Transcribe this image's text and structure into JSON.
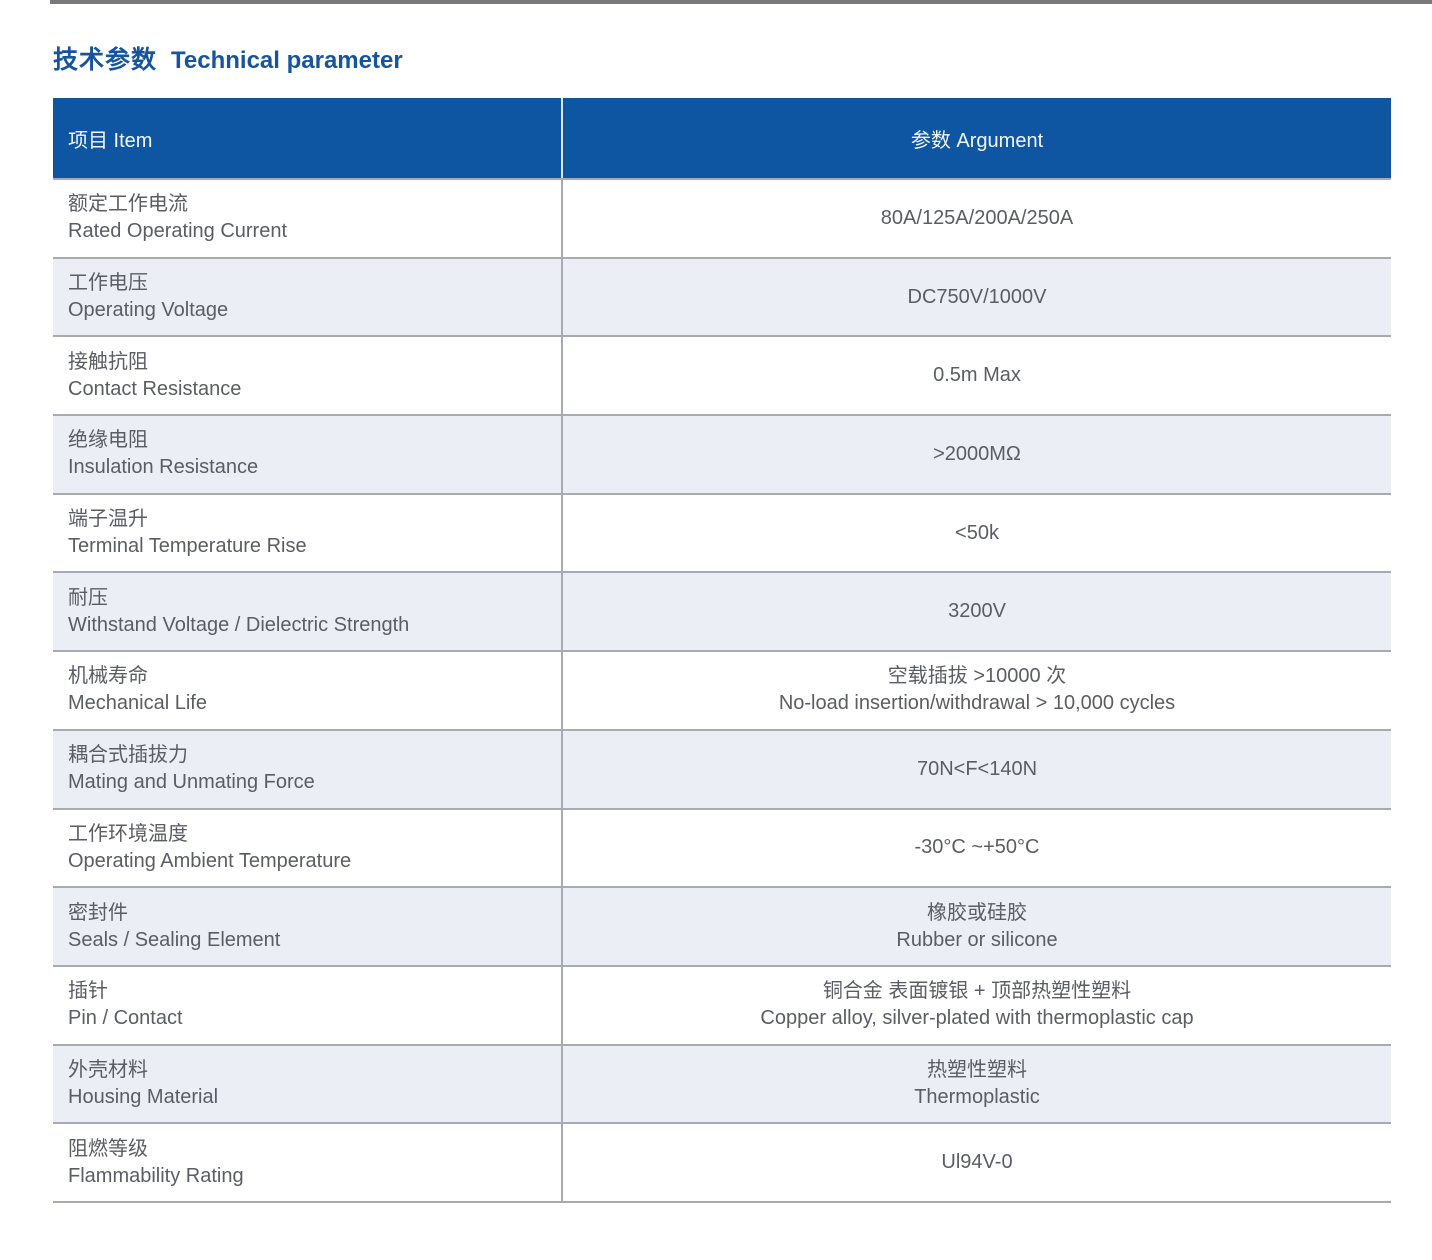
{
  "page": {
    "title_zh": "技术参数",
    "title_en": "Technical parameter"
  },
  "table": {
    "header": {
      "item": "项目 Item",
      "argument": "参数 Argument"
    },
    "rows": [
      {
        "label_zh": "额定工作电流",
        "label_en": "Rated Operating Current",
        "value_lines": [
          "80A/125A/200A/250A"
        ]
      },
      {
        "label_zh": "工作电压",
        "label_en": "Operating Voltage",
        "value_lines": [
          "DC750V/1000V"
        ]
      },
      {
        "label_zh": "接触抗阻",
        "label_en": "Contact Resistance",
        "value_lines": [
          "0.5m Max"
        ]
      },
      {
        "label_zh": "绝缘电阻",
        "label_en": "Insulation Resistance",
        "value_lines": [
          ">2000MΩ"
        ]
      },
      {
        "label_zh": "端子温升",
        "label_en": "Terminal Temperature Rise",
        "value_lines": [
          "<50k"
        ]
      },
      {
        "label_zh": "耐压",
        "label_en": "Withstand Voltage / Dielectric Strength",
        "value_lines": [
          "3200V"
        ]
      },
      {
        "label_zh": "机械寿命",
        "label_en": "Mechanical Life",
        "value_lines": [
          "空载插拔 >10000 次",
          "No-load insertion/withdrawal > 10,000 cycles"
        ]
      },
      {
        "label_zh": "耦合式插拔力",
        "label_en": "Mating and Unmating Force",
        "value_lines": [
          "70N<F<140N"
        ]
      },
      {
        "label_zh": "工作环境温度",
        "label_en": "Operating Ambient Temperature",
        "value_lines": [
          "-30°C ~+50°C"
        ]
      },
      {
        "label_zh": "密封件",
        "label_en": "Seals / Sealing Element",
        "value_lines": [
          "橡胶或硅胶",
          "Rubber or silicone"
        ]
      },
      {
        "label_zh": "插针",
        "label_en": "Pin / Contact",
        "value_lines": [
          "铜合金 表面镀银 + 顶部热塑性塑料",
          "Copper alloy, silver-plated with thermoplastic cap"
        ]
      },
      {
        "label_zh": "外壳材料",
        "label_en": "Housing Material",
        "value_lines": [
          "热塑性塑料",
          "Thermoplastic"
        ]
      },
      {
        "label_zh": "阻燃等级",
        "label_en": "Flammability Rating",
        "value_lines": [
          "Ul94V-0"
        ]
      }
    ]
  },
  "colors": {
    "header_bg": "#0e56a1",
    "title": "#17549e",
    "row_alt_bg": "#ebeef5",
    "border": "#a7abb1",
    "text": "#5a5d63",
    "top_bar": "#77797c"
  }
}
